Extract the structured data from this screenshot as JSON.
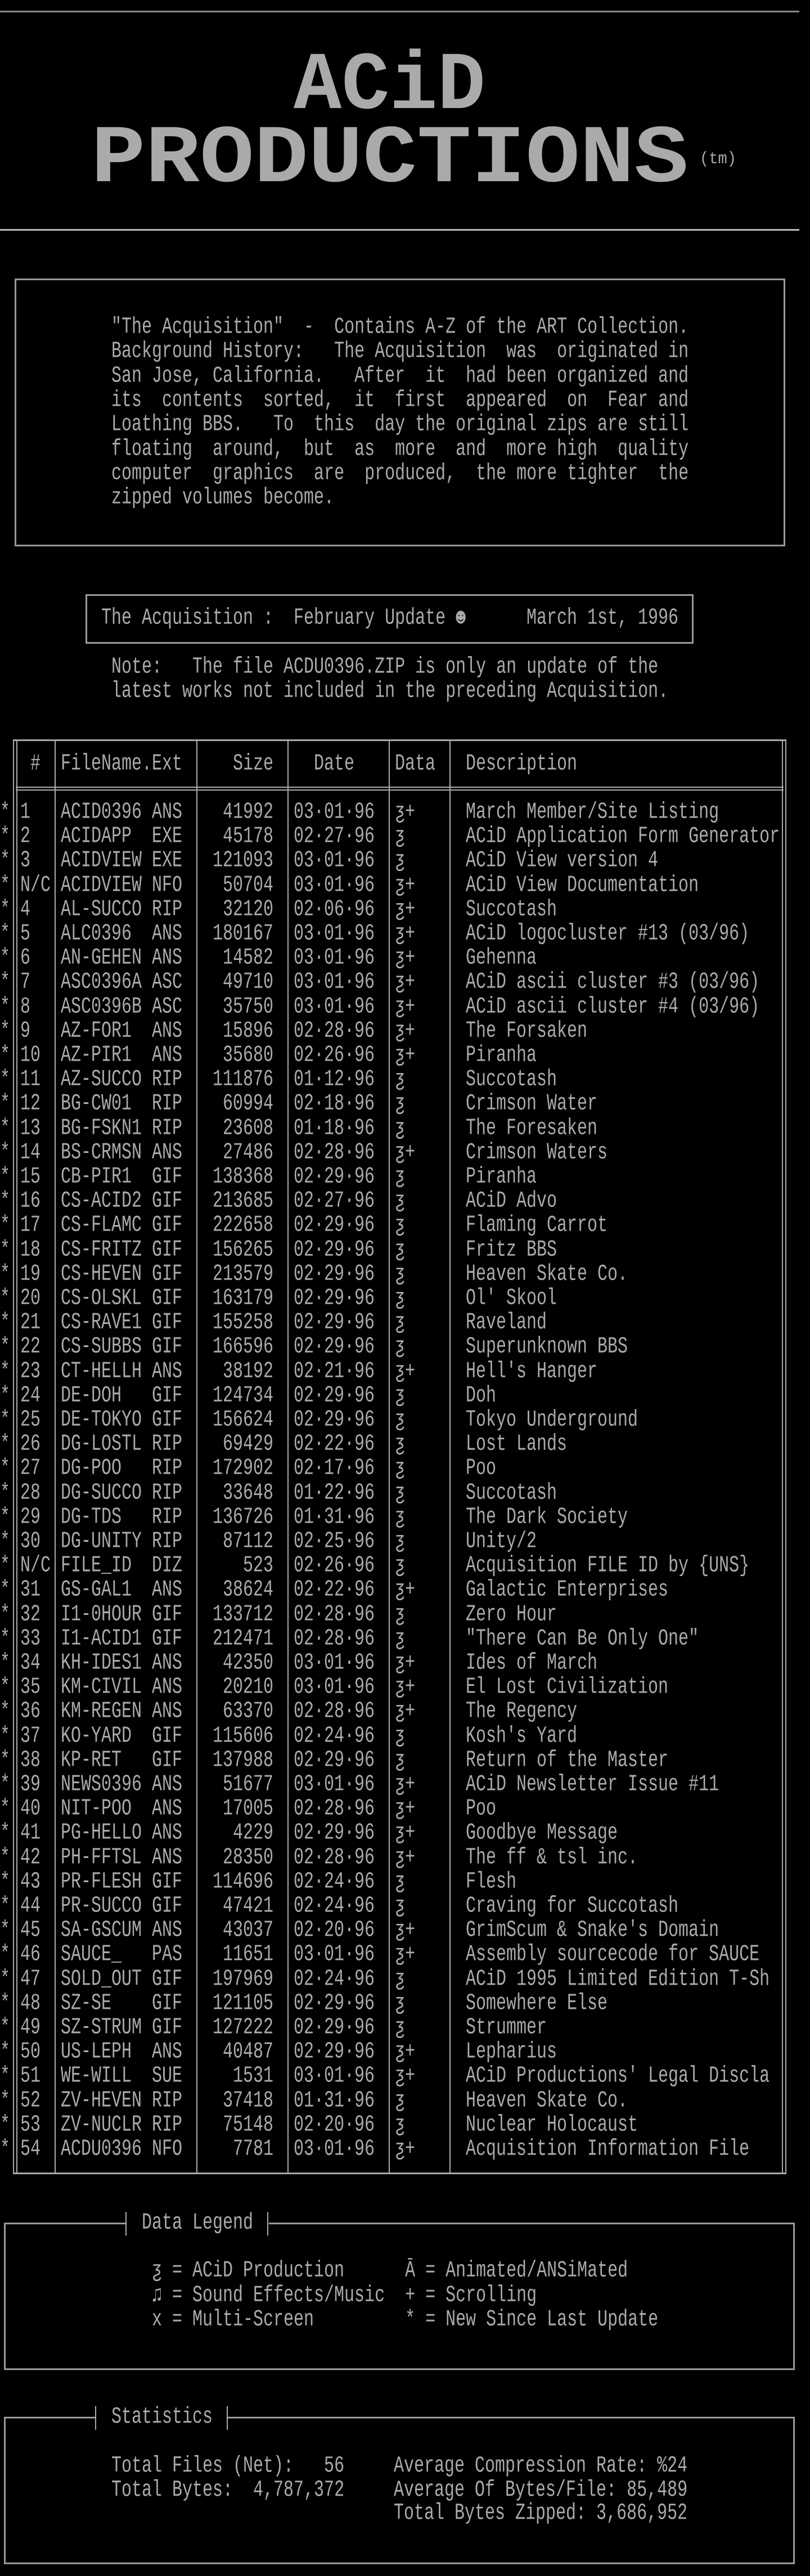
{
  "logo": {
    "line1": "ACiD",
    "line2": "PRODUCTIONS",
    "tm": "(tm)"
  },
  "intro": {
    "lines": [
      "\"The Acquisition\"  -  Contains A-Z of the ART Collection.",
      "Background History:   The Acquisition  was  originated in",
      "San Jose, California.   After  it  had been organized and",
      "its  contents  sorted,  it  first  appeared  on  Fear and",
      "Loathing BBS.   To  this  day the original zips are still",
      "floating  around,  but  as  more  and  more high  quality",
      "computer  graphics  are  produced,  the more tighter  the",
      "zipped volumes become."
    ]
  },
  "update": {
    "title": "The Acquisition :  February Update ☻",
    "date": "March 1st, 1996"
  },
  "note": {
    "lines": [
      "Note:   The file ACDU0396.ZIP is only an update of the",
      "latest works not included in the preceding Acquisition."
    ]
  },
  "table": {
    "headers": {
      "num": "#",
      "file": "FileName.Ext",
      "size": "Size",
      "date": "Date",
      "data": "Data",
      "desc": "Description"
    },
    "rows": [
      [
        "*",
        "1",
        "ACID0396",
        "ANS",
        "41992",
        "03·01·96",
        "ƺ+",
        "March Member/Site Listing"
      ],
      [
        "*",
        "2",
        "ACIDAPP",
        "EXE",
        "45178",
        "02·27·96",
        "ƺ",
        "ACiD Application Form Generator"
      ],
      [
        "*",
        "3",
        "ACIDVIEW",
        "EXE",
        "121093",
        "03·01·96",
        "ƺ",
        "ACiD View version 4"
      ],
      [
        "*",
        "N/C",
        "ACIDVIEW",
        "NFO",
        "50704",
        "03·01·96",
        "ƺ+",
        "ACiD View Documentation"
      ],
      [
        "*",
        "4",
        "AL-SUCCO",
        "RIP",
        "32120",
        "02·06·96",
        "ƺ+",
        "Succotash"
      ],
      [
        "*",
        "5",
        "ALC0396",
        "ANS",
        "180167",
        "03·01·96",
        "ƺ+",
        "ACiD logocluster #13 (03/96)"
      ],
      [
        "*",
        "6",
        "AN-GEHEN",
        "ANS",
        "14582",
        "03·01·96",
        "ƺ+",
        "Gehenna"
      ],
      [
        "*",
        "7",
        "ASC0396A",
        "ASC",
        "49710",
        "03·01·96",
        "ƺ+",
        "ACiD ascii cluster #3 (03/96)"
      ],
      [
        "*",
        "8",
        "ASC0396B",
        "ASC",
        "35750",
        "03·01·96",
        "ƺ+",
        "ACiD ascii cluster #4 (03/96)"
      ],
      [
        "*",
        "9",
        "AZ-FOR1",
        "ANS",
        "15896",
        "02·28·96",
        "ƺ+",
        "The Forsaken"
      ],
      [
        "*",
        "10",
        "AZ-PIR1",
        "ANS",
        "35680",
        "02·26·96",
        "ƺ+",
        "Piranha"
      ],
      [
        "*",
        "11",
        "AZ-SUCCO",
        "RIP",
        "111876",
        "01·12·96",
        "ƺ",
        "Succotash"
      ],
      [
        "*",
        "12",
        "BG-CW01",
        "RIP",
        "60994",
        "02·18·96",
        "ƺ",
        "Crimson Water"
      ],
      [
        "*",
        "13",
        "BG-FSKN1",
        "RIP",
        "23608",
        "01·18·96",
        "ƺ",
        "The Foresaken"
      ],
      [
        "*",
        "14",
        "BS-CRMSN",
        "ANS",
        "27486",
        "02·28·96",
        "ƺ+",
        "Crimson Waters"
      ],
      [
        "*",
        "15",
        "CB-PIR1",
        "GIF",
        "138368",
        "02·29·96",
        "ƺ",
        "Piranha"
      ],
      [
        "*",
        "16",
        "CS-ACID2",
        "GIF",
        "213685",
        "02·27·96",
        "ƺ",
        "ACiD Advo"
      ],
      [
        "*",
        "17",
        "CS-FLAMC",
        "GIF",
        "222658",
        "02·29·96",
        "ƺ",
        "Flaming Carrot"
      ],
      [
        "*",
        "18",
        "CS-FRITZ",
        "GIF",
        "156265",
        "02·29·96",
        "ƺ",
        "Fritz BBS"
      ],
      [
        "*",
        "19",
        "CS-HEVEN",
        "GIF",
        "213579",
        "02·29·96",
        "ƺ",
        "Heaven Skate Co."
      ],
      [
        "*",
        "20",
        "CS-OLSKL",
        "GIF",
        "163179",
        "02·29·96",
        "ƺ",
        "Ol' Skool"
      ],
      [
        "*",
        "21",
        "CS-RAVE1",
        "GIF",
        "155258",
        "02·29·96",
        "ƺ",
        "Raveland"
      ],
      [
        "*",
        "22",
        "CS-SUBBS",
        "GIF",
        "166596",
        "02·29·96",
        "ƺ",
        "Superunknown BBS"
      ],
      [
        "*",
        "23",
        "CT-HELLH",
        "ANS",
        "38192",
        "02·21·96",
        "ƺ+",
        "Hell's Hanger"
      ],
      [
        "*",
        "24",
        "DE-DOH",
        "GIF",
        "124734",
        "02·29·96",
        "ƺ",
        "Doh"
      ],
      [
        "*",
        "25",
        "DE-TOKYO",
        "GIF",
        "156624",
        "02·29·96",
        "ƺ",
        "Tokyo Underground"
      ],
      [
        "*",
        "26",
        "DG-LOSTL",
        "RIP",
        "69429",
        "02·22·96",
        "ƺ",
        "Lost Lands"
      ],
      [
        "*",
        "27",
        "DG-POO",
        "RIP",
        "172902",
        "02·17·96",
        "ƺ",
        "Poo"
      ],
      [
        "*",
        "28",
        "DG-SUCCO",
        "RIP",
        "33648",
        "01·22·96",
        "ƺ",
        "Succotash"
      ],
      [
        "*",
        "29",
        "DG-TDS",
        "RIP",
        "136726",
        "01·31·96",
        "ƺ",
        "The Dark Society"
      ],
      [
        "*",
        "30",
        "DG-UNITY",
        "RIP",
        "87112",
        "02·25·96",
        "ƺ",
        "Unity/2"
      ],
      [
        "*",
        "N/C",
        "FILE_ID",
        "DIZ",
        "523",
        "02·26·96",
        "ƺ",
        "Acquisition FILE ID by {UNS}"
      ],
      [
        "*",
        "31",
        "GS-GAL1",
        "ANS",
        "38624",
        "02·22·96",
        "ƺ+",
        "Galactic Enterprises"
      ],
      [
        "*",
        "32",
        "I1-0HOUR",
        "GIF",
        "133712",
        "02·28·96",
        "ƺ",
        "Zero Hour"
      ],
      [
        "*",
        "33",
        "I1-ACID1",
        "GIF",
        "212471",
        "02·28·96",
        "ƺ",
        "\"There Can Be Only One\""
      ],
      [
        "*",
        "34",
        "KH-IDES1",
        "ANS",
        "42350",
        "03·01·96",
        "ƺ+",
        "Ides of March"
      ],
      [
        "*",
        "35",
        "KM-CIVIL",
        "ANS",
        "20210",
        "03·01·96",
        "ƺ+",
        "El Lost Civilization"
      ],
      [
        "*",
        "36",
        "KM-REGEN",
        "ANS",
        "63370",
        "02·28·96",
        "ƺ+",
        "The Regency"
      ],
      [
        "*",
        "37",
        "KO-YARD",
        "GIF",
        "115606",
        "02·24·96",
        "ƺ",
        "Kosh's Yard"
      ],
      [
        "*",
        "38",
        "KP-RET",
        "GIF",
        "137988",
        "02·29·96",
        "ƺ",
        "Return of the Master"
      ],
      [
        "*",
        "39",
        "NEWS0396",
        "ANS",
        "51677",
        "03·01·96",
        "ƺ+",
        "ACiD Newsletter Issue #11"
      ],
      [
        "*",
        "40",
        "NIT-POO",
        "ANS",
        "17005",
        "02·28·96",
        "ƺ+",
        "Poo"
      ],
      [
        "*",
        "41",
        "PG-HELLO",
        "ANS",
        "4229",
        "02·29·96",
        "ƺ+",
        "Goodbye Message"
      ],
      [
        "*",
        "42",
        "PH-FFTSL",
        "ANS",
        "28350",
        "02·28·96",
        "ƺ+",
        "The ff & tsl inc."
      ],
      [
        "*",
        "43",
        "PR-FLESH",
        "GIF",
        "114696",
        "02·24·96",
        "ƺ",
        "Flesh"
      ],
      [
        "*",
        "44",
        "PR-SUCCO",
        "GIF",
        "47421",
        "02·24·96",
        "ƺ",
        "Craving for Succotash"
      ],
      [
        "*",
        "45",
        "SA-GSCUM",
        "ANS",
        "43037",
        "02·20·96",
        "ƺ+",
        "GrimScum & Snake's Domain"
      ],
      [
        "*",
        "46",
        "SAUCE_",
        "PAS",
        "11651",
        "03·01·96",
        "ƺ+",
        "Assembly sourcecode for SAUCE"
      ],
      [
        "*",
        "47",
        "SOLD_OUT",
        "GIF",
        "197969",
        "02·24·96",
        "ƺ",
        "ACiD 1995 Limited Edition T-Sh"
      ],
      [
        "*",
        "48",
        "SZ-SE",
        "GIF",
        "121105",
        "02·29·96",
        "ƺ",
        "Somewhere Else"
      ],
      [
        "*",
        "49",
        "SZ-STRUM",
        "GIF",
        "127222",
        "02·29·96",
        "ƺ",
        "Strummer"
      ],
      [
        "*",
        "50",
        "US-LEPH",
        "ANS",
        "40487",
        "02·29·96",
        "ƺ+",
        "Lepharius"
      ],
      [
        "*",
        "51",
        "WE-WILL",
        "SUE",
        "1531",
        "03·01·96",
        "ƺ+",
        "ACiD Productions' Legal Discla"
      ],
      [
        "*",
        "52",
        "ZV-HEVEN",
        "RIP",
        "37418",
        "01·31·96",
        "ƺ",
        "Heaven Skate Co."
      ],
      [
        "*",
        "53",
        "ZV-NUCLR",
        "RIP",
        "75148",
        "02·20·96",
        "ƺ",
        "Nuclear Holocaust"
      ],
      [
        "*",
        "54",
        "ACDU0396",
        "NFO",
        "7781",
        "03·01·96",
        "ƺ+",
        "Acquisition Information File"
      ]
    ]
  },
  "legend": {
    "title": "Data Legend",
    "items": [
      "ƺ = ACiD Production      Ā = Animated/ANSiMated",
      "♫ = Sound Effects/Music  + = Scrolling",
      "x = Multi-Screen         * = New Since Last Update"
    ]
  },
  "stats": {
    "title": "Statistics",
    "total_files": "Total Files (Net):   56",
    "total_bytes": "Total Bytes:  4,787,372",
    "avg_compression": "Average Compression Rate: %24",
    "avg_bytes": "Average Of Bytes/File: 85,489",
    "bytes_zipped": "Total Bytes Zipped: 3,686,952"
  },
  "colors": {
    "background": "#000000",
    "text": "#aaaaaa",
    "lines": "#999999"
  }
}
